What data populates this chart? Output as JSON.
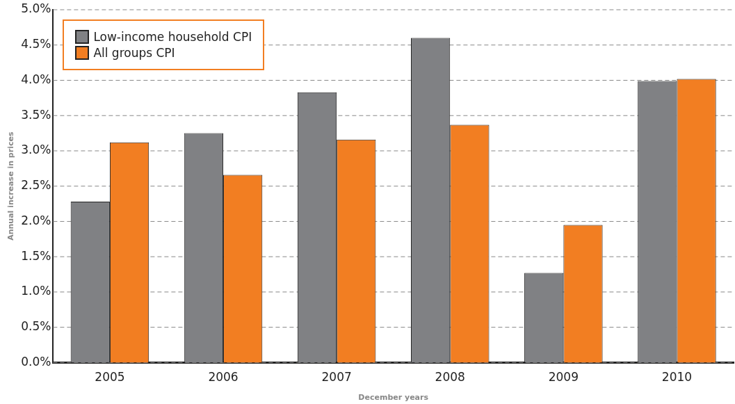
{
  "chart_data": {
    "type": "bar",
    "xlabel": "December years",
    "ylabel": "Annual increase in prices",
    "categories": [
      "2005",
      "2006",
      "2007",
      "2008",
      "2009",
      "2010"
    ],
    "series": [
      {
        "name": "Low-income household CPI",
        "color": "#808184",
        "values": [
          2.28,
          3.25,
          3.83,
          4.6,
          1.27,
          3.99
        ]
      },
      {
        "name": "All groups CPI",
        "color": "#f27e22",
        "values": [
          3.12,
          2.66,
          3.16,
          3.37,
          1.95,
          4.02
        ]
      }
    ],
    "ylim": [
      0,
      5
    ],
    "yticks": [
      {
        "value": 0,
        "label": "0.0%"
      },
      {
        "value": 0.5,
        "label": "0.5%"
      },
      {
        "value": 1,
        "label": "1.0%"
      },
      {
        "value": 1.5,
        "label": "1.5%"
      },
      {
        "value": 2,
        "label": "2.0%"
      },
      {
        "value": 2.5,
        "label": "2.5%"
      },
      {
        "value": 3,
        "label": "3.0%"
      },
      {
        "value": 3.5,
        "label": "3.5%"
      },
      {
        "value": 4,
        "label": "4.0%"
      },
      {
        "value": 4.5,
        "label": "4.5%"
      },
      {
        "value": 5,
        "label": "5.0%"
      }
    ],
    "grid": "y",
    "legend": "top left"
  }
}
